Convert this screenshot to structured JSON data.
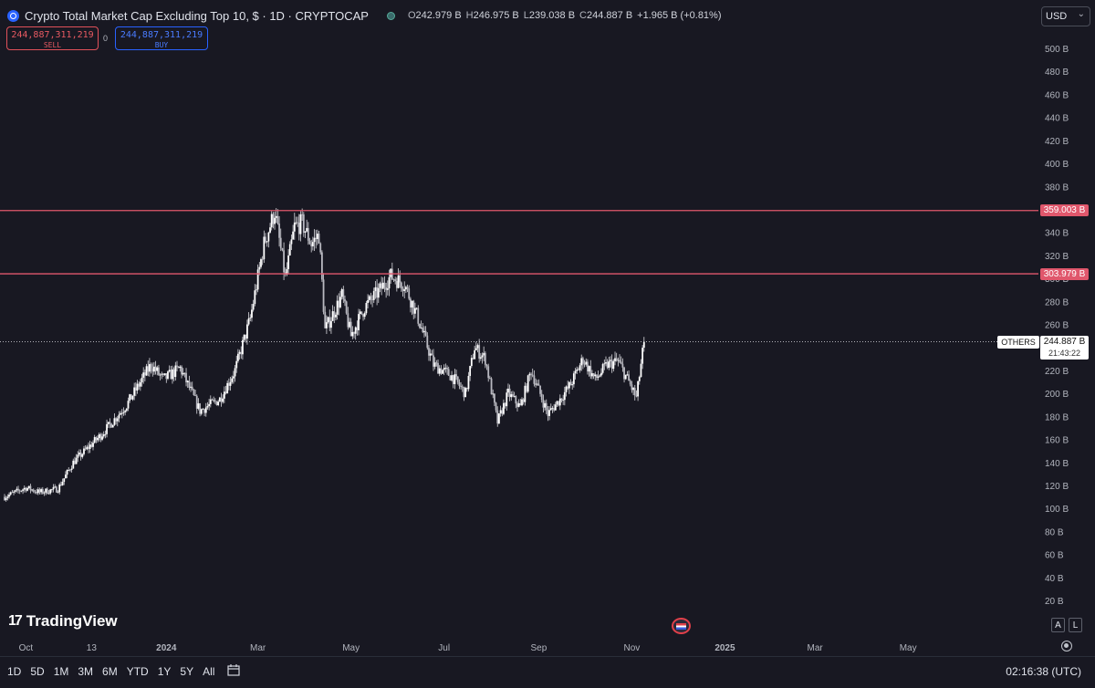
{
  "header": {
    "title": "Crypto Total Market Cap Excluding Top 10, $ · 1D · CRYPTOCAP",
    "ohlc": [
      {
        "key": "O",
        "value": "242.979 B"
      },
      {
        "key": "H",
        "value": "246.975 B"
      },
      {
        "key": "L",
        "value": "239.038 B"
      },
      {
        "key": "C",
        "value": "244.887 B"
      }
    ],
    "change": "+1.965 B (+0.81%)"
  },
  "trade": {
    "sell_price": "244,887,311,219",
    "sell_label": "SELL",
    "spread": "0",
    "buy_price": "244,887,311,219",
    "buy_label": "BUY"
  },
  "currency": "USD",
  "levels": [
    {
      "label": "359.003 B",
      "value": 359.003
    },
    {
      "label": "303.979 B",
      "value": 303.979
    }
  ],
  "current": {
    "symbol": "OTHERS",
    "price": "244.887 B",
    "countdown": "21:43:22",
    "value": 244.887
  },
  "brand": "TradingView",
  "scale_buttons": [
    "A",
    "L"
  ],
  "ranges": [
    "1D",
    "5D",
    "1M",
    "3M",
    "6M",
    "YTD",
    "1Y",
    "5Y",
    "All"
  ],
  "clock": "02:16:38 (UTC)",
  "colors": {
    "background": "#181822",
    "level_line": "#e0576c",
    "candle": "#d9d9de",
    "accent": "#2962ff"
  },
  "chart_data": {
    "type": "candlestick",
    "y_unit": "B",
    "ylim": [
      10,
      520
    ],
    "y_ticks": [
      20,
      40,
      60,
      80,
      100,
      120,
      140,
      160,
      180,
      200,
      220,
      240,
      260,
      280,
      300,
      320,
      340,
      360,
      380,
      400,
      420,
      440,
      460,
      480,
      500
    ],
    "y_tick_labels": [
      "20 B",
      "40 B",
      "60 B",
      "80 B",
      "100 B",
      "120 B",
      "140 B",
      "160 B",
      "180 B",
      "200 B",
      "220 B",
      "240 B",
      "260 B",
      "280 B",
      "300 B",
      "320 B",
      "340 B",
      "360 B",
      "380 B",
      "400 B",
      "420 B",
      "440 B",
      "460 B",
      "480 B",
      "500 B"
    ],
    "x_start": "2023-09-17",
    "x_end": "2025-06-01",
    "x_ticks": [
      {
        "date": "2023-10-01",
        "label": "Oct"
      },
      {
        "date": "2023-11-13",
        "label": "13"
      },
      {
        "date": "2024-01-01",
        "label": "2024"
      },
      {
        "date": "2024-03-01",
        "label": "Mar"
      },
      {
        "date": "2024-05-01",
        "label": "May"
      },
      {
        "date": "2024-07-01",
        "label": "Jul"
      },
      {
        "date": "2024-09-01",
        "label": "Sep"
      },
      {
        "date": "2024-11-01",
        "label": "Nov"
      },
      {
        "date": "2025-01-01",
        "label": "2025"
      },
      {
        "date": "2025-03-01",
        "label": "Mar"
      },
      {
        "date": "2025-05-01",
        "label": "May"
      }
    ],
    "series": [
      {
        "data_start": "2023-09-17",
        "data_end": "2024-11-09",
        "close_path": [
          {
            "date": "2023-09-17",
            "value": 110
          },
          {
            "date": "2023-10-01",
            "value": 118
          },
          {
            "date": "2023-10-10",
            "value": 114
          },
          {
            "date": "2023-10-22",
            "value": 117
          },
          {
            "date": "2023-11-01",
            "value": 140
          },
          {
            "date": "2023-11-20",
            "value": 165
          },
          {
            "date": "2023-12-06",
            "value": 190
          },
          {
            "date": "2023-12-22",
            "value": 225
          },
          {
            "date": "2023-12-30",
            "value": 212
          },
          {
            "date": "2024-01-10",
            "value": 222
          },
          {
            "date": "2024-01-23",
            "value": 185
          },
          {
            "date": "2024-02-05",
            "value": 195
          },
          {
            "date": "2024-02-15",
            "value": 220
          },
          {
            "date": "2024-02-25",
            "value": 265
          },
          {
            "date": "2024-03-05",
            "value": 330
          },
          {
            "date": "2024-03-12",
            "value": 358
          },
          {
            "date": "2024-03-19",
            "value": 300
          },
          {
            "date": "2024-03-25",
            "value": 345
          },
          {
            "date": "2024-03-30",
            "value": 348
          },
          {
            "date": "2024-04-05",
            "value": 330
          },
          {
            "date": "2024-04-10",
            "value": 338
          },
          {
            "date": "2024-04-14",
            "value": 255
          },
          {
            "date": "2024-04-25",
            "value": 285
          },
          {
            "date": "2024-05-01",
            "value": 250
          },
          {
            "date": "2024-05-10",
            "value": 275
          },
          {
            "date": "2024-05-20",
            "value": 290
          },
          {
            "date": "2024-05-27",
            "value": 302
          },
          {
            "date": "2024-06-05",
            "value": 295
          },
          {
            "date": "2024-06-14",
            "value": 265
          },
          {
            "date": "2024-06-24",
            "value": 225
          },
          {
            "date": "2024-07-06",
            "value": 215
          },
          {
            "date": "2024-07-15",
            "value": 200
          },
          {
            "date": "2024-07-21",
            "value": 240
          },
          {
            "date": "2024-07-28",
            "value": 230
          },
          {
            "date": "2024-08-05",
            "value": 175
          },
          {
            "date": "2024-08-12",
            "value": 200
          },
          {
            "date": "2024-08-20",
            "value": 188
          },
          {
            "date": "2024-08-27",
            "value": 220
          },
          {
            "date": "2024-09-07",
            "value": 182
          },
          {
            "date": "2024-09-15",
            "value": 195
          },
          {
            "date": "2024-09-22",
            "value": 208
          },
          {
            "date": "2024-09-30",
            "value": 230
          },
          {
            "date": "2024-10-08",
            "value": 212
          },
          {
            "date": "2024-10-16",
            "value": 225
          },
          {
            "date": "2024-10-23",
            "value": 228
          },
          {
            "date": "2024-10-30",
            "value": 210
          },
          {
            "date": "2024-11-04",
            "value": 196
          },
          {
            "date": "2024-11-09",
            "value": 244.887
          }
        ]
      }
    ]
  }
}
